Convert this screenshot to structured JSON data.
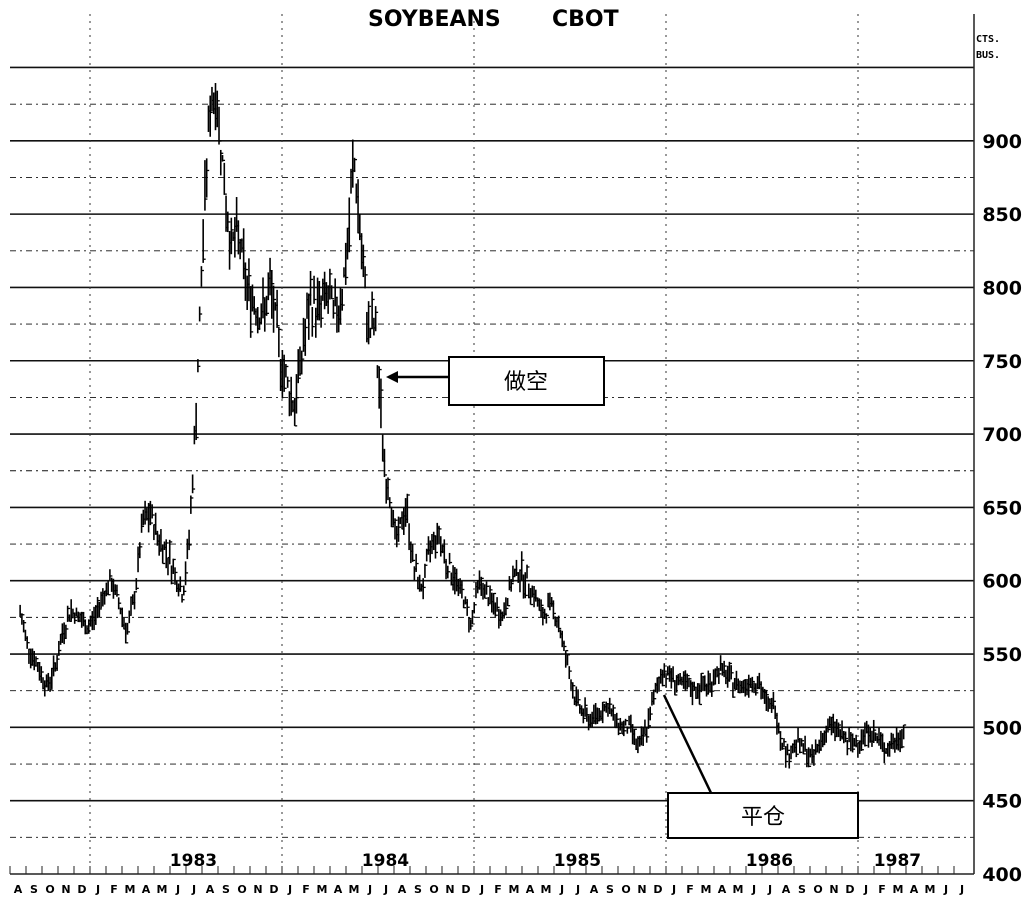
{
  "chart_data": {
    "type": "bar",
    "subtype": "daily-high-low-price-bars",
    "title": "SOYBEANS",
    "exchange": "CBOT",
    "unit_label": [
      "CTS.",
      "BUS."
    ],
    "ylim": [
      400,
      950
    ],
    "y_ticks": [
      900,
      850,
      800,
      750,
      700,
      650,
      600,
      550,
      500,
      450,
      400
    ],
    "grid": true,
    "x_start": "1982-08",
    "x_end": "1987-07",
    "year_labels": [
      {
        "label": "1983",
        "date": "1983-07-15"
      },
      {
        "label": "1984",
        "date": "1984-07-15"
      },
      {
        "label": "1985",
        "date": "1985-07-15"
      },
      {
        "label": "1986",
        "date": "1986-07-15"
      },
      {
        "label": "1987",
        "date": "1987-03-15"
      }
    ],
    "month_labels": [
      "A",
      "S",
      "O",
      "N",
      "D",
      "J",
      "F",
      "M",
      "A",
      "M",
      "J",
      "J",
      "A",
      "S",
      "O",
      "N",
      "D",
      "J",
      "F",
      "M",
      "A",
      "M",
      "J",
      "J",
      "A",
      "S",
      "O",
      "N",
      "D",
      "J",
      "F",
      "M",
      "A",
      "M",
      "J",
      "J",
      "A",
      "S",
      "O",
      "N",
      "D",
      "J",
      "F",
      "M",
      "A",
      "M",
      "J",
      "J",
      "A",
      "S",
      "O",
      "N",
      "D",
      "J",
      "F",
      "M",
      "A",
      "M",
      "J",
      "J"
    ],
    "series": [
      {
        "values": [
          [
            "1982-08-20",
            578
          ],
          [
            "1982-09-05",
            555
          ],
          [
            "1982-09-25",
            540
          ],
          [
            "1982-10-10",
            528
          ],
          [
            "1982-10-25",
            540
          ],
          [
            "1982-11-10",
            565
          ],
          [
            "1982-11-25",
            580
          ],
          [
            "1982-12-10",
            575
          ],
          [
            "1982-12-25",
            568
          ],
          [
            "1983-01-10",
            575
          ],
          [
            "1983-01-25",
            590
          ],
          [
            "1983-02-10",
            600
          ],
          [
            "1983-02-25",
            585
          ],
          [
            "1983-03-10",
            565
          ],
          [
            "1983-03-25",
            590
          ],
          [
            "1983-04-10",
            640
          ],
          [
            "1983-04-25",
            645
          ],
          [
            "1983-05-10",
            628
          ],
          [
            "1983-05-25",
            620
          ],
          [
            "1983-06-10",
            605
          ],
          [
            "1983-06-25",
            590
          ],
          [
            "1983-07-05",
            620
          ],
          [
            "1983-07-15",
            680
          ],
          [
            "1983-07-25",
            760
          ],
          [
            "1983-08-05",
            850
          ],
          [
            "1983-08-15",
            920
          ],
          [
            "1983-08-25",
            935
          ],
          [
            "1983-09-05",
            905
          ],
          [
            "1983-09-15",
            860
          ],
          [
            "1983-09-25",
            830
          ],
          [
            "1983-10-10",
            835
          ],
          [
            "1983-10-25",
            800
          ],
          [
            "1983-11-10",
            790
          ],
          [
            "1983-11-25",
            780
          ],
          [
            "1983-12-10",
            800
          ],
          [
            "1983-12-25",
            760
          ],
          [
            "1984-01-10",
            735
          ],
          [
            "1984-01-25",
            720
          ],
          [
            "1984-02-10",
            760
          ],
          [
            "1984-02-25",
            790
          ],
          [
            "1984-03-10",
            785
          ],
          [
            "1984-03-25",
            795
          ],
          [
            "1984-04-10",
            780
          ],
          [
            "1984-04-25",
            800
          ],
          [
            "1984-05-05",
            830
          ],
          [
            "1984-05-15",
            890
          ],
          [
            "1984-05-25",
            850
          ],
          [
            "1984-06-05",
            800
          ],
          [
            "1984-06-15",
            770
          ],
          [
            "1984-06-25",
            775
          ],
          [
            "1984-07-05",
            720
          ],
          [
            "1984-07-15",
            670
          ],
          [
            "1984-07-25",
            655
          ],
          [
            "1984-08-05",
            625
          ],
          [
            "1984-08-15",
            640
          ],
          [
            "1984-08-25",
            650
          ],
          [
            "1984-09-05",
            615
          ],
          [
            "1984-09-15",
            600
          ],
          [
            "1984-09-25",
            595
          ],
          [
            "1984-10-10",
            625
          ],
          [
            "1984-10-25",
            632
          ],
          [
            "1984-11-10",
            612
          ],
          [
            "1984-11-25",
            602
          ],
          [
            "1984-12-10",
            590
          ],
          [
            "1984-12-25",
            570
          ],
          [
            "1985-01-10",
            600
          ],
          [
            "1985-01-25",
            590
          ],
          [
            "1985-02-10",
            582
          ],
          [
            "1985-02-25",
            575
          ],
          [
            "1985-03-10",
            598
          ],
          [
            "1985-03-25",
            608
          ],
          [
            "1985-04-10",
            600
          ],
          [
            "1985-04-25",
            590
          ],
          [
            "1985-05-10",
            575
          ],
          [
            "1985-05-25",
            585
          ],
          [
            "1985-06-10",
            570
          ],
          [
            "1985-06-25",
            545
          ],
          [
            "1985-07-10",
            520
          ],
          [
            "1985-07-25",
            510
          ],
          [
            "1985-08-10",
            505
          ],
          [
            "1985-08-25",
            510
          ],
          [
            "1985-09-10",
            515
          ],
          [
            "1985-09-25",
            505
          ],
          [
            "1985-10-10",
            500
          ],
          [
            "1985-10-25",
            500
          ],
          [
            "1985-11-10",
            485
          ],
          [
            "1985-11-25",
            500
          ],
          [
            "1985-12-05",
            515
          ],
          [
            "1985-12-15",
            530
          ],
          [
            "1985-12-25",
            538
          ],
          [
            "1986-01-10",
            535
          ],
          [
            "1986-01-25",
            530
          ],
          [
            "1986-02-10",
            528
          ],
          [
            "1986-02-25",
            525
          ],
          [
            "1986-03-10",
            528
          ],
          [
            "1986-03-25",
            530
          ],
          [
            "1986-04-10",
            540
          ],
          [
            "1986-04-25",
            535
          ],
          [
            "1986-05-10",
            530
          ],
          [
            "1986-05-25",
            528
          ],
          [
            "1986-06-10",
            532
          ],
          [
            "1986-06-25",
            530
          ],
          [
            "1986-07-10",
            515
          ],
          [
            "1986-07-25",
            515
          ],
          [
            "1986-08-05",
            495
          ],
          [
            "1986-08-20",
            480
          ],
          [
            "1986-09-05",
            490
          ],
          [
            "1986-09-20",
            485
          ],
          [
            "1986-10-05",
            478
          ],
          [
            "1986-10-20",
            490
          ],
          [
            "1986-11-05",
            500
          ],
          [
            "1986-11-20",
            500
          ],
          [
            "1986-12-05",
            492
          ],
          [
            "1986-12-20",
            488
          ],
          [
            "1987-01-05",
            492
          ],
          [
            "1987-01-20",
            498
          ],
          [
            "1987-02-05",
            493
          ],
          [
            "1987-02-20",
            486
          ],
          [
            "1987-03-05",
            488
          ],
          [
            "1987-03-20",
            493
          ],
          [
            "1987-03-28",
            498
          ]
        ]
      }
    ],
    "annotations": [
      {
        "text": "做空",
        "target": [
          "1984-06-25",
          750
        ]
      },
      {
        "text": "平仓",
        "target": [
          "1985-12-10",
          525
        ]
      }
    ]
  }
}
